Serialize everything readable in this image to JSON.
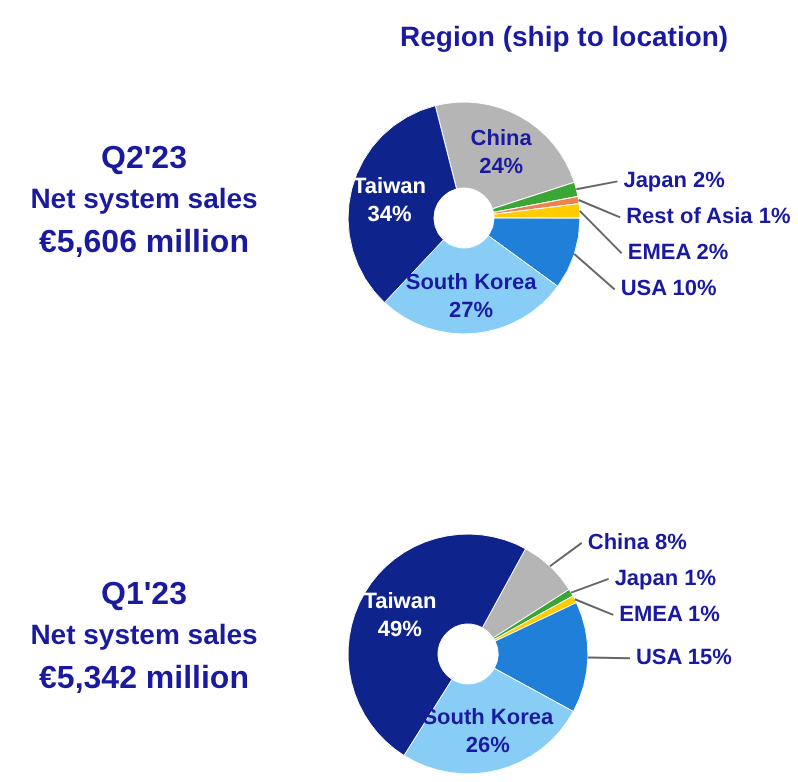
{
  "chart_data": [
    {
      "type": "donut",
      "title": "Region (ship to location)",
      "annotations": [
        "Q2'23",
        "Net system sales",
        "€5,606 million"
      ],
      "categories": [
        "China",
        "Japan",
        "Rest of Asia",
        "EMEA",
        "USA",
        "South Korea",
        "Taiwan"
      ],
      "values": [
        24,
        2,
        1,
        2,
        10,
        27,
        34
      ],
      "value_labels": [
        "24%",
        "2%",
        "1%",
        "2%",
        "10%",
        "27%",
        "34%"
      ],
      "colors": [
        "#b5b5b5",
        "#3aa635",
        "#f08050",
        "#ffcc00",
        "#1f7fd9",
        "#88cdf5",
        "#0f238c"
      ]
    },
    {
      "type": "donut",
      "annotations": [
        "Q1'23",
        "Net system sales",
        "€5,342 million"
      ],
      "categories": [
        "China",
        "Japan",
        "EMEA",
        "USA",
        "South Korea",
        "Taiwan"
      ],
      "values": [
        8,
        1,
        1,
        15,
        26,
        49
      ],
      "value_labels": [
        "8%",
        "1%",
        "1%",
        "15%",
        "26%",
        "49%"
      ],
      "colors": [
        "#b5b5b5",
        "#3aa635",
        "#ffcc00",
        "#1f7fd9",
        "#88cdf5",
        "#0f238c"
      ]
    }
  ]
}
